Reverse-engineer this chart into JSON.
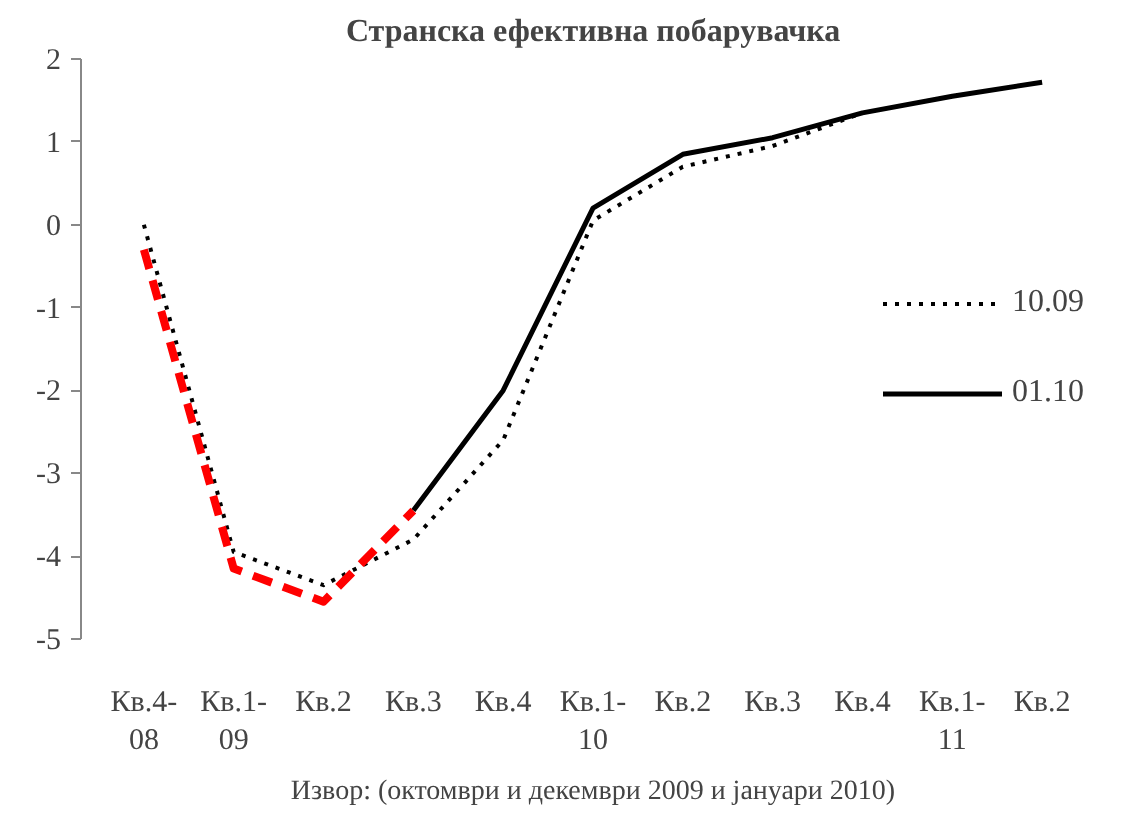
{
  "chart_data": {
    "type": "line",
    "title": "Странска ефективна побарувачка",
    "categories": [
      "Кв.4-\n08",
      "Кв.1-\n09",
      "Кв.2",
      "Кв.3",
      "Кв.4",
      "Кв.1-\n10",
      "Кв.2",
      "Кв.3",
      "Кв.4",
      "Кв.1-\n11",
      "Кв.2"
    ],
    "series": [
      {
        "name": "10.09",
        "color": "#000000",
        "line_style": "dotted",
        "values": [
          0,
          -3.95,
          -4.35,
          -3.8,
          -2.6,
          0.05,
          0.7,
          0.95,
          1.35,
          null,
          null
        ]
      },
      {
        "name": "01.10",
        "color": "#000000",
        "line_style": "solid",
        "values": [
          null,
          null,
          null,
          -3.45,
          -2.0,
          0.2,
          0.85,
          1.05,
          1.35,
          1.55,
          1.72
        ]
      },
      {
        "color": "#ff0000",
        "line_style": "dashed",
        "values": [
          -0.3,
          -4.15,
          -4.55,
          -3.45,
          null,
          null,
          null,
          null,
          null,
          null,
          null
        ]
      }
    ],
    "ylim": [
      -5,
      2
    ],
    "yticks": [
      -5,
      -4,
      -3,
      -2,
      -1,
      0,
      1,
      2
    ],
    "grid": false,
    "legend": "right",
    "marker": "none",
    "annotations": [
      "Извор: (октомври и декември 2009 и јануари 2010)"
    ]
  }
}
